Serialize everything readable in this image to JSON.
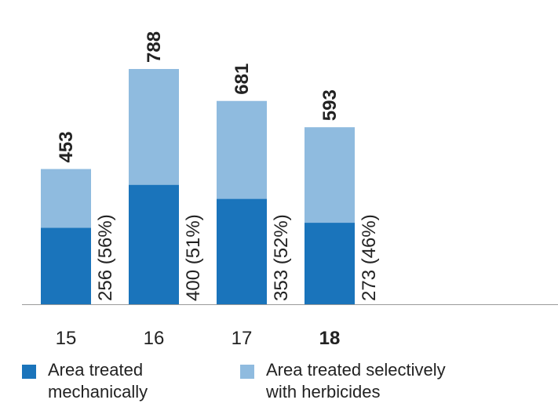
{
  "chart_data": {
    "type": "bar",
    "stacked": true,
    "categories": [
      "15",
      "16",
      "17",
      "18"
    ],
    "highlight_category": "18",
    "series": [
      {
        "name": "Area treated mechanically",
        "values": [
          256,
          400,
          353,
          273
        ],
        "labels": [
          "256 (56%)",
          "400 (51%)",
          "353 (52%)",
          "273 (46%)"
        ],
        "color": "#1a74bb"
      },
      {
        "name": "Area treated selectively with herbicides",
        "values": [
          197,
          388,
          328,
          320
        ],
        "color": "#8fbbdf"
      }
    ],
    "totals": [
      453,
      788,
      681,
      593
    ],
    "ylim": [
      0,
      830
    ],
    "grid": false,
    "legend_position": "bottom"
  },
  "legend": {
    "mechanical": "Area treated mechanically",
    "herbicides": "Area treated selectively with herbicides"
  },
  "colors": {
    "mechanical": "#1a74bb",
    "herbicides": "#8fbbdf",
    "axis": "#9a9a9a",
    "text": "#222222"
  }
}
